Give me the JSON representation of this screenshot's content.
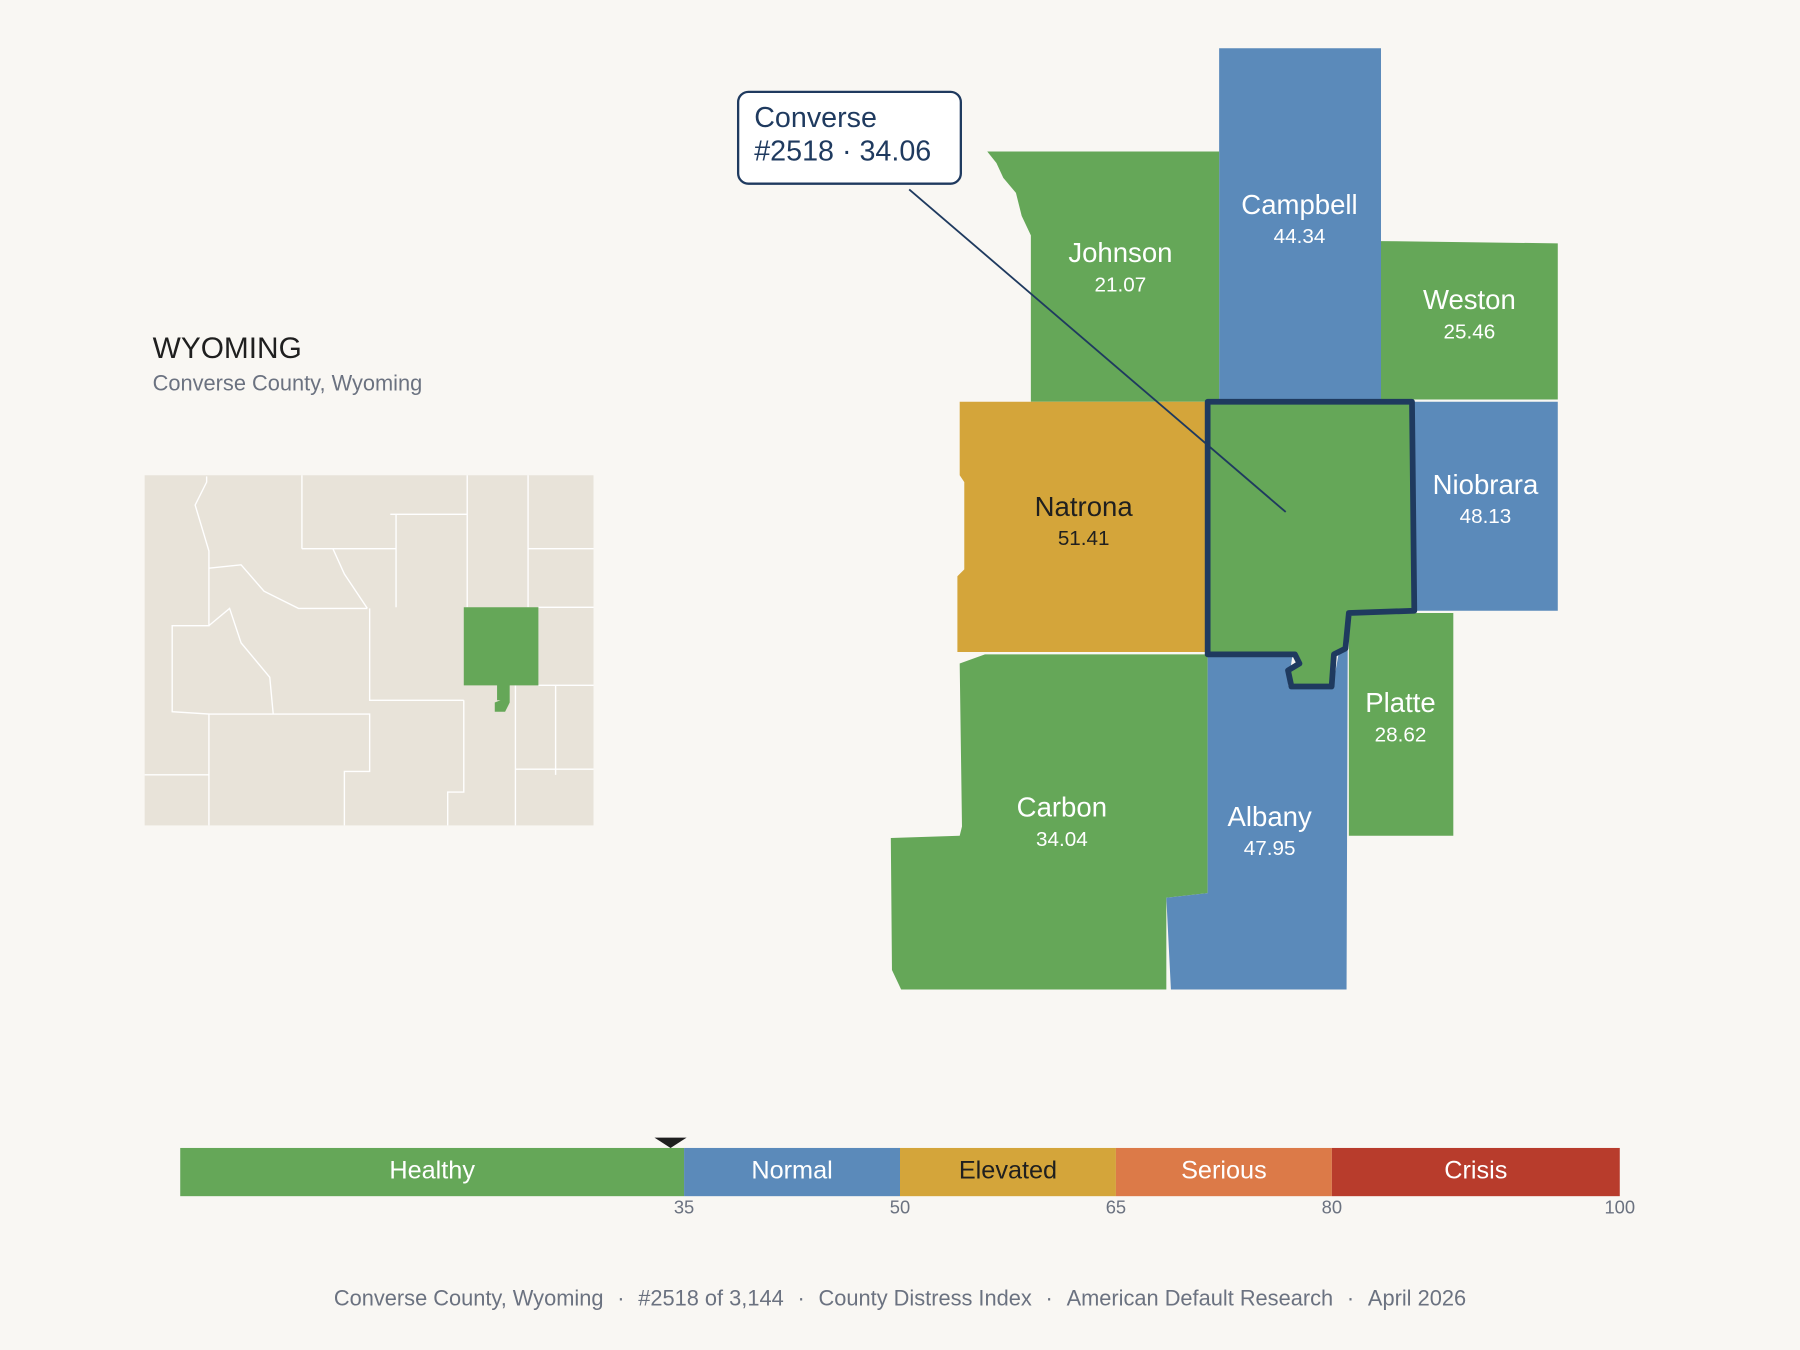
{
  "header": {
    "title": "WYOMING",
    "subtitle": "Converse County, Wyoming"
  },
  "callout": {
    "line1": "Converse",
    "line2": "#2518 · 34.06"
  },
  "counties": [
    {
      "name": "Campbell",
      "value": 44.34
    },
    {
      "name": "Johnson",
      "value": 21.07
    },
    {
      "name": "Weston",
      "value": 25.46
    },
    {
      "name": "Natrona",
      "value": 51.41
    },
    {
      "name": "Converse",
      "value": 34.06
    },
    {
      "name": "Niobrara",
      "value": 48.13
    },
    {
      "name": "Platte",
      "value": 28.62
    },
    {
      "name": "Carbon",
      "value": 34.04
    },
    {
      "name": "Albany",
      "value": 47.95
    }
  ],
  "legend": {
    "lim": [
      0,
      100
    ],
    "ticks": [
      35,
      50,
      65,
      80,
      100
    ],
    "bands": [
      {
        "label": "Healthy",
        "color": "#65a758",
        "text_color": "#ffffff"
      },
      {
        "label": "Normal",
        "color": "#5b8aba",
        "text_color": "#ffffff"
      },
      {
        "label": "Elevated",
        "color": "#d4a53a",
        "text_color": "#1f1f1f"
      },
      {
        "label": "Serious",
        "color": "#dc7a48",
        "text_color": "#ffffff"
      },
      {
        "label": "Crisis",
        "color": "#b83c2c",
        "text_color": "#ffffff"
      }
    ]
  },
  "footer": {
    "separator": "·",
    "parts": [
      "Converse County, Wyoming",
      "#2518 of 3,144",
      "County Distress Index",
      "American Default Research",
      "April 2026"
    ]
  }
}
